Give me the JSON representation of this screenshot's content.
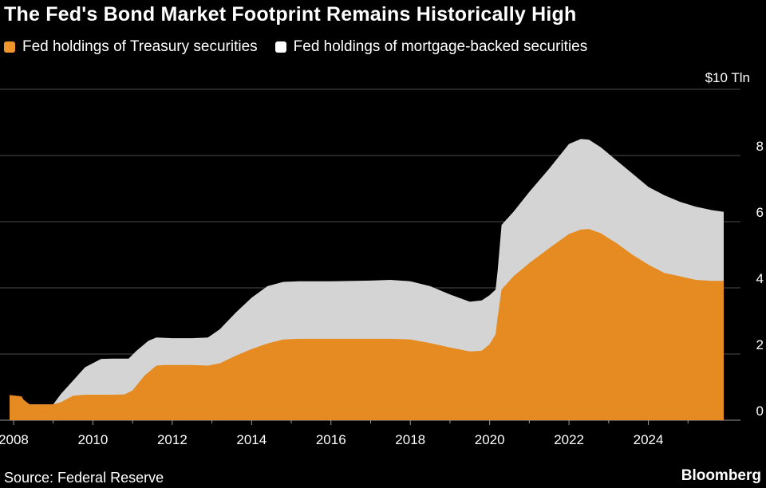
{
  "chart_data": {
    "type": "area",
    "title": "The Fed's Bond Market Footprint Remains Historically High",
    "unit_label": "$10 Tln",
    "ylim": [
      0,
      10
    ],
    "y_ticks": [
      0,
      2,
      4,
      6,
      8,
      10
    ],
    "x_range": [
      2007.9,
      2026.0
    ],
    "x_ticks": [
      2008,
      2010,
      2012,
      2014,
      2016,
      2018,
      2020,
      2022,
      2024
    ],
    "series": [
      {
        "name": "Fed holdings of Treasury securities",
        "color": "#f0952c",
        "points": [
          [
            2007.9,
            0.76
          ],
          [
            2008.2,
            0.72
          ],
          [
            2008.25,
            0.62
          ],
          [
            2008.4,
            0.48
          ],
          [
            2008.6,
            0.48
          ],
          [
            2009.0,
            0.48
          ],
          [
            2009.2,
            0.55
          ],
          [
            2009.5,
            0.74
          ],
          [
            2009.8,
            0.77
          ],
          [
            2010.5,
            0.77
          ],
          [
            2010.8,
            0.78
          ],
          [
            2011.0,
            0.9
          ],
          [
            2011.3,
            1.35
          ],
          [
            2011.6,
            1.65
          ],
          [
            2011.8,
            1.67
          ],
          [
            2012.5,
            1.67
          ],
          [
            2012.9,
            1.65
          ],
          [
            2013.2,
            1.72
          ],
          [
            2013.6,
            1.95
          ],
          [
            2014.0,
            2.15
          ],
          [
            2014.4,
            2.32
          ],
          [
            2014.8,
            2.44
          ],
          [
            2015.2,
            2.46
          ],
          [
            2016.5,
            2.46
          ],
          [
            2017.5,
            2.46
          ],
          [
            2018.0,
            2.44
          ],
          [
            2018.5,
            2.33
          ],
          [
            2019.0,
            2.2
          ],
          [
            2019.5,
            2.08
          ],
          [
            2019.8,
            2.1
          ],
          [
            2020.0,
            2.3
          ],
          [
            2020.15,
            2.6
          ],
          [
            2020.2,
            3.1
          ],
          [
            2020.3,
            3.95
          ],
          [
            2020.6,
            4.35
          ],
          [
            2021.0,
            4.75
          ],
          [
            2021.5,
            5.2
          ],
          [
            2022.0,
            5.63
          ],
          [
            2022.3,
            5.76
          ],
          [
            2022.5,
            5.78
          ],
          [
            2022.8,
            5.65
          ],
          [
            2023.2,
            5.35
          ],
          [
            2023.6,
            5.0
          ],
          [
            2024.0,
            4.7
          ],
          [
            2024.4,
            4.45
          ],
          [
            2024.8,
            4.35
          ],
          [
            2025.2,
            4.24
          ],
          [
            2025.6,
            4.21
          ],
          [
            2025.9,
            4.21
          ]
        ]
      },
      {
        "name": "Fed holdings of mortgage-backed securities",
        "color": "#ffffff",
        "points": [
          [
            2007.9,
            0.76
          ],
          [
            2008.2,
            0.72
          ],
          [
            2008.25,
            0.62
          ],
          [
            2008.4,
            0.48
          ],
          [
            2008.6,
            0.48
          ],
          [
            2009.0,
            0.48
          ],
          [
            2009.2,
            0.8
          ],
          [
            2009.5,
            1.2
          ],
          [
            2009.8,
            1.6
          ],
          [
            2010.2,
            1.85
          ],
          [
            2010.5,
            1.86
          ],
          [
            2010.9,
            1.86
          ],
          [
            2011.1,
            2.1
          ],
          [
            2011.4,
            2.4
          ],
          [
            2011.6,
            2.5
          ],
          [
            2012.0,
            2.48
          ],
          [
            2012.5,
            2.48
          ],
          [
            2012.9,
            2.5
          ],
          [
            2013.2,
            2.75
          ],
          [
            2013.6,
            3.25
          ],
          [
            2014.0,
            3.7
          ],
          [
            2014.4,
            4.05
          ],
          [
            2014.8,
            4.18
          ],
          [
            2015.2,
            4.2
          ],
          [
            2016.0,
            4.2
          ],
          [
            2017.0,
            4.22
          ],
          [
            2017.5,
            4.24
          ],
          [
            2018.0,
            4.2
          ],
          [
            2018.5,
            4.05
          ],
          [
            2019.0,
            3.8
          ],
          [
            2019.5,
            3.58
          ],
          [
            2019.8,
            3.62
          ],
          [
            2020.0,
            3.78
          ],
          [
            2020.15,
            3.95
          ],
          [
            2020.2,
            4.5
          ],
          [
            2020.3,
            5.9
          ],
          [
            2020.6,
            6.3
          ],
          [
            2021.0,
            6.9
          ],
          [
            2021.5,
            7.6
          ],
          [
            2022.0,
            8.35
          ],
          [
            2022.3,
            8.5
          ],
          [
            2022.5,
            8.48
          ],
          [
            2022.8,
            8.25
          ],
          [
            2023.2,
            7.85
          ],
          [
            2023.6,
            7.45
          ],
          [
            2024.0,
            7.05
          ],
          [
            2024.4,
            6.8
          ],
          [
            2024.8,
            6.6
          ],
          [
            2025.2,
            6.45
          ],
          [
            2025.6,
            6.35
          ],
          [
            2025.9,
            6.3
          ]
        ]
      }
    ]
  },
  "legend": {
    "items": [
      {
        "label": "Fed holdings of Treasury securities",
        "color": "#f0952c"
      },
      {
        "label": "Fed holdings of mortgage-backed securities",
        "color": "#ffffff"
      }
    ]
  },
  "footer": {
    "source": "Source: Federal Reserve",
    "brand": "Bloomberg"
  },
  "colors": {
    "background": "#000000",
    "grid": "#4d4d4d",
    "treasury_area": "#e58b22",
    "mbs_area": "#d4d4d4"
  }
}
